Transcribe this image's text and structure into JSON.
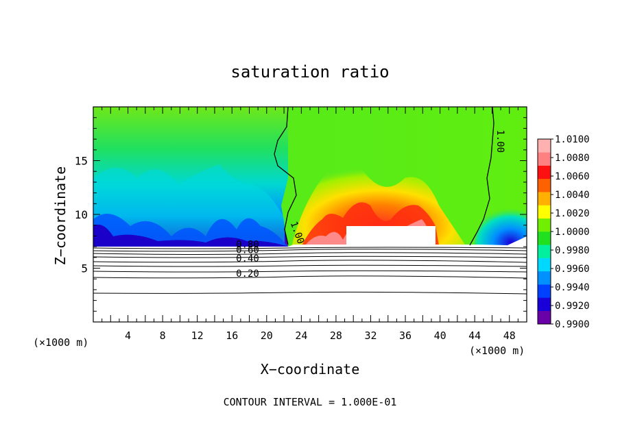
{
  "chart_data": {
    "type": "heatmap",
    "title": "saturation ratio",
    "xlabel": "X−coordinate",
    "ylabel": "Z−coordinate",
    "x_unit_left": "(×1000 m)",
    "x_unit_right": "(×1000 m)",
    "footer": "CONTOUR INTERVAL = 1.000E-01",
    "xlim": [
      0,
      50
    ],
    "ylim": [
      0,
      20
    ],
    "xticks": [
      4,
      8,
      12,
      16,
      20,
      24,
      28,
      32,
      36,
      40,
      44,
      48
    ],
    "yticks": [
      5,
      10,
      15
    ],
    "colorbar": {
      "range": [
        0.99,
        1.01
      ],
      "levels": [
        0.99,
        0.992,
        0.994,
        0.996,
        0.998,
        1.0,
        1.002,
        1.004,
        1.006,
        1.008,
        1.01
      ],
      "labels": [
        "0.9900",
        "0.9920",
        "0.9940",
        "0.9960",
        "0.9980",
        "1.0000",
        "1.0020",
        "1.0040",
        "1.0060",
        "1.0080",
        "1.0100"
      ],
      "colors": [
        "#6a00a8",
        "#1a00d8",
        "#0040ff",
        "#0090ff",
        "#00d8ff",
        "#00f0a0",
        "#20e020",
        "#70f000",
        "#ffff00",
        "#ffb000",
        "#ff6000",
        "#ff1010",
        "#ff8080",
        "#ffb0b0"
      ]
    },
    "contour_labels": [
      {
        "text": "1.00",
        "x": 23.2,
        "y": 8.2,
        "angle": 70
      },
      {
        "text": "1.00",
        "x": 46.6,
        "y": 16.8,
        "angle": 90
      },
      {
        "text": "0.80",
        "x": 17.8,
        "y": 6.9,
        "angle": 0
      },
      {
        "text": "0.60",
        "x": 17.8,
        "y": 6.4,
        "angle": 0
      },
      {
        "text": "0.40",
        "x": 17.8,
        "y": 5.6,
        "angle": 0
      },
      {
        "text": "0.20",
        "x": 17.8,
        "y": 4.2,
        "angle": 0
      }
    ]
  }
}
